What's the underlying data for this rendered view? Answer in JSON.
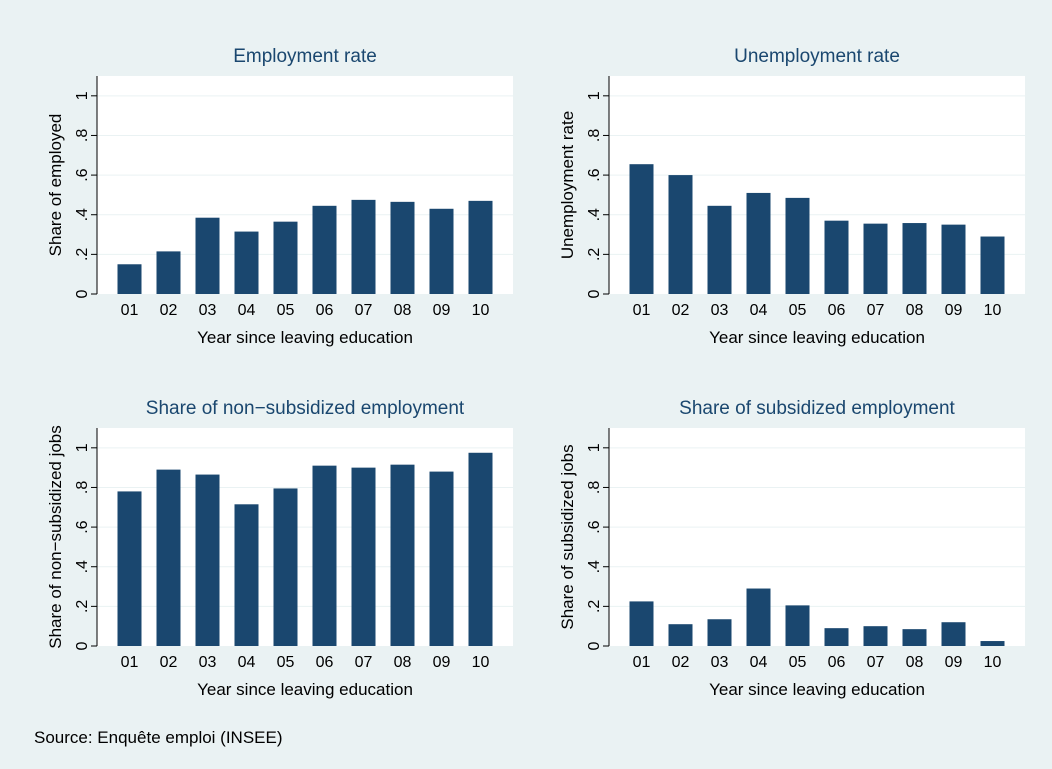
{
  "style": {
    "background": "#eaf2f3",
    "plot_background": "#ffffff",
    "bar_color": "#1a476f",
    "title_color": "#1a476f",
    "grid_color": "#eaf2f3"
  },
  "chart_data": [
    {
      "type": "bar",
      "title": "Employment rate",
      "xlabel": "Year since leaving education",
      "ylabel": "Share of employed",
      "categories": [
        "01",
        "02",
        "03",
        "04",
        "05",
        "06",
        "07",
        "08",
        "09",
        "10"
      ],
      "values": [
        0.15,
        0.215,
        0.385,
        0.315,
        0.365,
        0.445,
        0.475,
        0.465,
        0.43,
        0.47
      ],
      "ylim": [
        0,
        1.1
      ],
      "yticks": [
        0,
        0.2,
        0.4,
        0.6,
        0.8,
        1
      ],
      "ytick_labels": [
        "0",
        ".2",
        ".4",
        ".6",
        ".8",
        "1"
      ],
      "grid": true
    },
    {
      "type": "bar",
      "title": "Unemployment rate",
      "xlabel": "Year since leaving education",
      "ylabel": "Unemployment rate",
      "categories": [
        "01",
        "02",
        "03",
        "04",
        "05",
        "06",
        "07",
        "08",
        "09",
        "10"
      ],
      "values": [
        0.655,
        0.6,
        0.445,
        0.51,
        0.485,
        0.37,
        0.355,
        0.358,
        0.35,
        0.29
      ],
      "ylim": [
        0,
        1.1
      ],
      "yticks": [
        0,
        0.2,
        0.4,
        0.6,
        0.8,
        1
      ],
      "ytick_labels": [
        "0",
        ".2",
        ".4",
        ".6",
        ".8",
        "1"
      ],
      "grid": true
    },
    {
      "type": "bar",
      "title": "Share of non−subsidized employment",
      "xlabel": "Year since leaving education",
      "ylabel": "Share of non−subsidized jobs",
      "categories": [
        "01",
        "02",
        "03",
        "04",
        "05",
        "06",
        "07",
        "08",
        "09",
        "10"
      ],
      "values": [
        0.78,
        0.89,
        0.865,
        0.715,
        0.795,
        0.91,
        0.9,
        0.915,
        0.88,
        0.975
      ],
      "ylim": [
        0,
        1.1
      ],
      "yticks": [
        0,
        0.2,
        0.4,
        0.6,
        0.8,
        1
      ],
      "ytick_labels": [
        "0",
        ".2",
        ".4",
        ".6",
        ".8",
        "1"
      ],
      "grid": true
    },
    {
      "type": "bar",
      "title": "Share of subsidized employment",
      "xlabel": "Year since leaving education",
      "ylabel": "Share of subsidized jobs",
      "categories": [
        "01",
        "02",
        "03",
        "04",
        "05",
        "06",
        "07",
        "08",
        "09",
        "10"
      ],
      "values": [
        0.225,
        0.11,
        0.135,
        0.29,
        0.205,
        0.09,
        0.1,
        0.085,
        0.12,
        0.025
      ],
      "ylim": [
        0,
        1.1
      ],
      "yticks": [
        0,
        0.2,
        0.4,
        0.6,
        0.8,
        1
      ],
      "ytick_labels": [
        "0",
        ".2",
        ".4",
        ".6",
        ".8",
        "1"
      ],
      "grid": true
    }
  ],
  "source_note": "Source: Enquête emploi (INSEE)"
}
